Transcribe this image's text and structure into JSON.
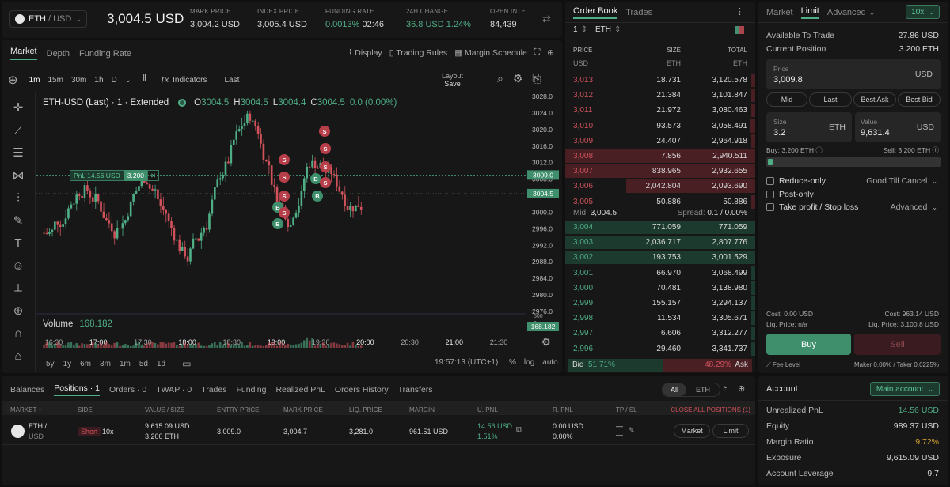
{
  "header": {
    "pair": "ETH",
    "quote": "/ USD",
    "price": "3,004.5 USD",
    "stats": [
      {
        "label": "MARK PRICE",
        "value": "3,004.2 USD"
      },
      {
        "label": "INDEX PRICE",
        "value": "3,005.4 USD"
      },
      {
        "label": "FUNDING RATE",
        "value": "0.0013%",
        "extra": "02:46"
      },
      {
        "label": "24H CHANGE",
        "value": "36.8 USD",
        "extra": "1.24%"
      },
      {
        "label": "OPEN INTE",
        "value": "84,439"
      }
    ]
  },
  "chart": {
    "tabs": [
      "Market",
      "Depth",
      "Funding Rate"
    ],
    "tools": [
      "Display",
      "Trading Rules",
      "Margin Schedule"
    ],
    "intervals": [
      "1m",
      "15m",
      "30m",
      "1h",
      "D"
    ],
    "indicators_label": "Indicators",
    "last_label": "Last",
    "layout_label": "Layout",
    "layout_sub": "Save",
    "title": "ETH-USD (Last) · 1 · Extended",
    "ohlc": {
      "o_label": "O",
      "o": "3004.5",
      "h_label": "H",
      "h": "3004.5",
      "l_label": "L",
      "l": "3004.4",
      "c_label": "C",
      "c": "3004.5",
      "chg": "0.0 (0.00%)"
    },
    "pnl_label": "PnL 14.56 USD",
    "pnl_size": "3.200",
    "volume_label": "Volume",
    "volume_value": "168.182",
    "price_ticks": [
      "3028.0",
      "3024.0",
      "3020.0",
      "3016.0",
      "3012.0",
      "3008.0",
      "3004.0",
      "3000.0",
      "2996.0",
      "2992.0",
      "2988.0",
      "2984.0",
      "2980.0",
      "2976.0"
    ],
    "tag_top": "3009.0",
    "tag_cur": "3004.5",
    "tag_vol": "168.182",
    "vol_ticks": [
      "500",
      "0"
    ],
    "time_ticks": [
      "16:30",
      "17:00",
      "17:30",
      "18:00",
      "18:30",
      "19:00",
      "19:30",
      "20:00",
      "20:30",
      "21:00",
      "21:30"
    ],
    "ranges": [
      "5y",
      "1y",
      "6m",
      "3m",
      "1m",
      "5d",
      "1d"
    ],
    "clock": "19:57:13 (UTC+1)",
    "scale_opts": [
      "%",
      "log",
      "auto"
    ],
    "accent_up": "#4fae86",
    "accent_down": "#d0525b"
  },
  "orderbook": {
    "tabs": [
      "Order Book",
      "Trades"
    ],
    "grouping": "1",
    "asset": "ETH",
    "cols": [
      "PRICE",
      "SIZE",
      "TOTAL"
    ],
    "units": [
      "USD",
      "ETH",
      "ETH"
    ],
    "asks": [
      {
        "p": "3,013",
        "s": "18.731",
        "t": "3,120.578",
        "d": 0.02
      },
      {
        "p": "3,012",
        "s": "21.384",
        "t": "3,101.847",
        "d": 0.02
      },
      {
        "p": "3,011",
        "s": "21.972",
        "t": "3,080.463",
        "d": 0.02
      },
      {
        "p": "3,010",
        "s": "93.573",
        "t": "3,058.491",
        "d": 0.03
      },
      {
        "p": "3,009",
        "s": "24.407",
        "t": "2,964.918",
        "d": 0.02
      },
      {
        "p": "3,008",
        "s": "7.856",
        "t": "2,940.511",
        "d": 1.0
      },
      {
        "p": "3,007",
        "s": "838.965",
        "t": "2,932.655",
        "d": 1.0
      },
      {
        "p": "3,006",
        "s": "2,042.804",
        "t": "2,093.690",
        "d": 0.68
      },
      {
        "p": "3,005",
        "s": "50.886",
        "t": "50.886",
        "d": 0.02
      }
    ],
    "mid_label": "Mid:",
    "mid": "3,004.5",
    "spread_label": "Spread:",
    "spread": "0.1",
    "spread_pct": "/ 0.00%",
    "bids": [
      {
        "p": "3,004",
        "s": "771.059",
        "t": "771.059",
        "d": 1.0
      },
      {
        "p": "3,003",
        "s": "2,036.717",
        "t": "2,807.776",
        "d": 1.0
      },
      {
        "p": "3,002",
        "s": "193.753",
        "t": "3,001.529",
        "d": 1.0
      },
      {
        "p": "3,001",
        "s": "66.970",
        "t": "3,068.499",
        "d": 0.02
      },
      {
        "p": "3,000",
        "s": "70.481",
        "t": "3,138.980",
        "d": 0.02
      },
      {
        "p": "2,999",
        "s": "155.157",
        "t": "3,294.137",
        "d": 0.02
      },
      {
        "p": "2,998",
        "s": "11.534",
        "t": "3,305.671",
        "d": 0.02
      },
      {
        "p": "2,997",
        "s": "6.606",
        "t": "3,312.277",
        "d": 0.02
      },
      {
        "p": "2,996",
        "s": "29.460",
        "t": "3,341.737",
        "d": 0.02
      }
    ],
    "bid_label": "Bid",
    "bid_pct": "51.71%",
    "ask_label": "Ask",
    "ask_pct": "48.29%",
    "bid_share": 0.5171
  },
  "trade": {
    "tabs": [
      "Market",
      "Limit",
      "Advanced"
    ],
    "leverage": "10x",
    "available_label": "Available To Trade",
    "available": "27.86 USD",
    "position_label": "Current Position",
    "position": "3.200 ETH",
    "price_label": "Price",
    "price": "3,009.8",
    "price_unit": "USD",
    "quick": [
      "Mid",
      "Last",
      "Best Ask",
      "Best Bid"
    ],
    "size_label": "Size",
    "size": "3.2",
    "size_unit": "ETH",
    "value_label": "Value",
    "value": "9,631.4",
    "value_unit": "USD",
    "buy_info": "Buy: 3.200 ETH",
    "sell_info": "Sell: 3.200 ETH",
    "opts": [
      "Reduce-only",
      "Post-only",
      "Take profit / Stop loss"
    ],
    "tif": "Good Till Cancel",
    "advanced": "Advanced",
    "cost_buy": "Cost: 0.00 USD",
    "cost_sell": "Cost: 963.14 USD",
    "liq_buy": "Liq. Price: n/a",
    "liq_sell": "Liq. Price: 3,100.8 USD",
    "buy_label": "Buy",
    "sell_label": "Sell",
    "fee_level": "Fee Level",
    "fees": "Maker 0.00% / Taker 0.0225%"
  },
  "positions": {
    "tabs": [
      "Balances",
      "Positions · 1",
      "Orders · 0",
      "TWAP · 0",
      "Trades",
      "Funding",
      "Realized PnL",
      "Orders History",
      "Transfers"
    ],
    "filters": [
      "All",
      "ETH"
    ],
    "cols": [
      "MARKET ↑",
      "SIDE",
      "VALUE / SIZE",
      "ENTRY PRICE",
      "MARK PRICE",
      "LIQ. PRICE",
      "MARGIN",
      "U. PNL",
      "R. PNL",
      "TP / SL"
    ],
    "close_all": "CLOSE ALL POSITIONS (1)",
    "row": {
      "market": "ETH /",
      "quote": "USD",
      "side": "Short",
      "lev": "10x",
      "value": "9,615.09 USD",
      "size": "3.200 ETH",
      "entry": "3,009.0",
      "mark": "3,004.7",
      "liq": "3,281.0",
      "margin": "961.51 USD",
      "upnl": "14.56 USD",
      "upnl_pct": "1.51%",
      "rpnl": "0.00 USD",
      "rpnl_pct": "0.00%",
      "tpsl1": "—",
      "tpsl2": "—",
      "btn_market": "Market",
      "btn_limit": "Limit"
    }
  },
  "account": {
    "title": "Account",
    "selector": "Main account",
    "rows": [
      {
        "label": "Unrealized PnL",
        "value": "14.56 USD"
      },
      {
        "label": "Equity",
        "value": "989.37 USD"
      },
      {
        "label": "Margin Ratio",
        "value": "9.72%"
      },
      {
        "label": "Exposure",
        "value": "9,615.09 USD"
      },
      {
        "label": "Account Leverage",
        "value": "9.7"
      }
    ]
  }
}
